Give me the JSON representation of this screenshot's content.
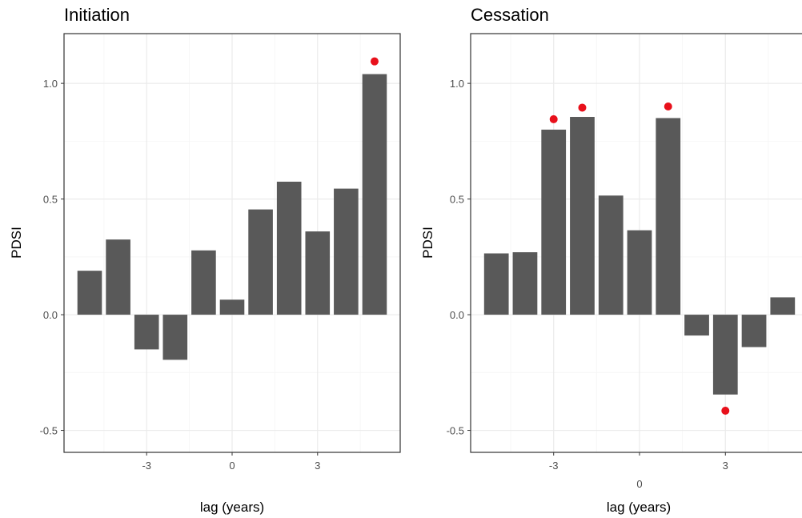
{
  "colors": {
    "bar": "#595959",
    "marker": "#e8101b"
  },
  "chart_data": [
    {
      "type": "bar",
      "title": "Initiation",
      "xlabel": "lag (years)",
      "ylabel": "PDSI",
      "x": [
        -5,
        -4,
        -3,
        -2,
        -1,
        0,
        1,
        2,
        3,
        4,
        5
      ],
      "values": [
        0.19,
        0.325,
        -0.15,
        -0.195,
        0.278,
        0.065,
        0.455,
        0.575,
        0.36,
        0.545,
        1.04
      ],
      "significant_markers": [
        {
          "x": 5,
          "y": 1.095
        }
      ],
      "xticks": [
        {
          "value": -3,
          "label": "-3"
        },
        {
          "value": 0,
          "label": "0"
        },
        {
          "value": 3,
          "label": "3"
        }
      ],
      "yticks": [
        {
          "value": -0.5,
          "label": "-0.5"
        },
        {
          "value": 0,
          "label": "0.0"
        },
        {
          "value": 0.5,
          "label": "0.5"
        },
        {
          "value": 1.0,
          "label": "1.0"
        }
      ],
      "xlim": [
        -5.9,
        5.9
      ],
      "ylim": [
        -0.595,
        1.215
      ],
      "grid": true,
      "legend": "none"
    },
    {
      "type": "bar",
      "title": "Cessation",
      "xlabel": "lag (years)",
      "ylabel": "PDSI",
      "x": [
        -5,
        -4,
        -3,
        -2,
        -1,
        0,
        1,
        2,
        3,
        4,
        5
      ],
      "values": [
        0.265,
        0.27,
        0.8,
        0.855,
        0.515,
        0.365,
        0.85,
        -0.09,
        -0.345,
        -0.14,
        0.075
      ],
      "significant_markers": [
        {
          "x": -3,
          "y": 0.845
        },
        {
          "x": -2,
          "y": 0.895
        },
        {
          "x": 1,
          "y": 0.9
        },
        {
          "x": 3,
          "y": -0.415
        }
      ],
      "xticks": [
        {
          "value": -3,
          "label": "-3"
        },
        {
          "value": 0,
          "label": "0"
        },
        {
          "value": 3,
          "label": "3"
        }
      ],
      "yticks": [
        {
          "value": -0.5,
          "label": "-0.5"
        },
        {
          "value": 0,
          "label": "0.0"
        },
        {
          "value": 0.5,
          "label": "0.5"
        },
        {
          "value": 1.0,
          "label": "1.0"
        }
      ],
      "xlim": [
        -5.9,
        5.9
      ],
      "ylim": [
        -0.595,
        1.215
      ],
      "grid": true,
      "legend": "none"
    }
  ]
}
